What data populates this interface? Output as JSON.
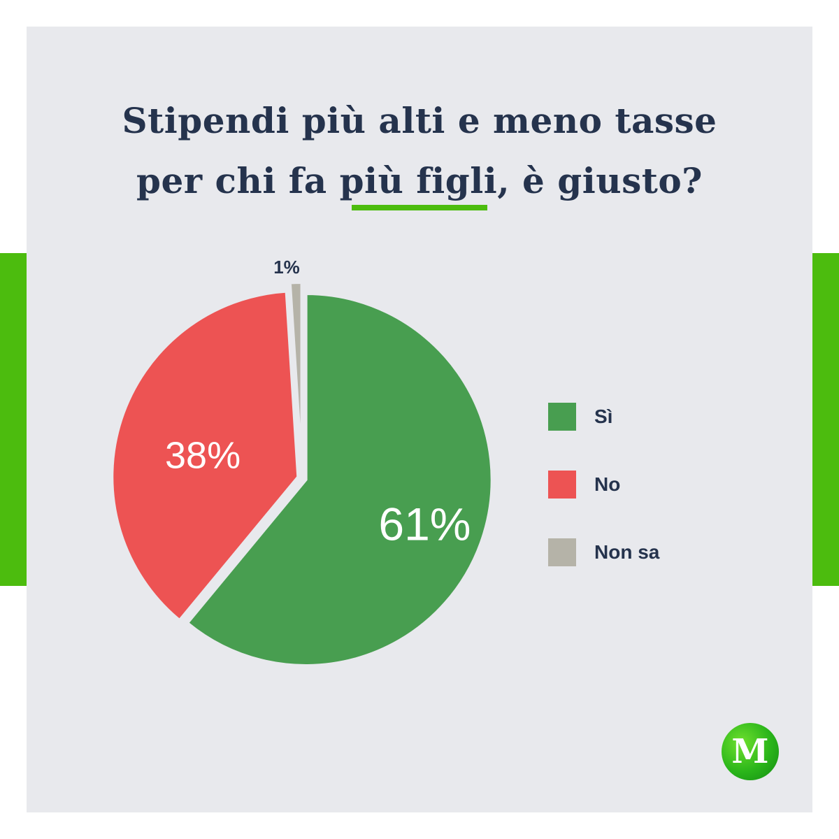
{
  "title_lines": [
    "Stipendi più alti e meno tasse",
    "per chi fa più figli, è giusto?"
  ],
  "colors": {
    "accent": "#4cbc0e",
    "background": "#e8e9ed",
    "text": "#25334d"
  },
  "chart_data": {
    "type": "pie",
    "title": "Stipendi più alti e meno tasse per chi fa più figli, è giusto?",
    "unit": "%",
    "legend_position": "right",
    "slices": [
      {
        "label": "Sì",
        "value": 61,
        "display": "61%",
        "color": "#489e50"
      },
      {
        "label": "No",
        "value": 38,
        "display": "38%",
        "color": "#ed5353"
      },
      {
        "label": "Non sa",
        "value": 1,
        "display": "1%",
        "color": "#b5b3a8"
      }
    ]
  },
  "logo": {
    "letter": "M"
  }
}
